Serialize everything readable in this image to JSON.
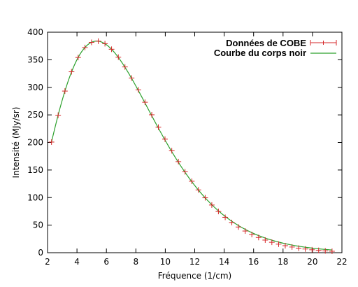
{
  "chart_data": {
    "type": "scatter",
    "title": "",
    "xlabel": "Fréquence (1/cm)",
    "ylabel": "Intensité (MJy/sr)",
    "xlim": [
      2,
      22
    ],
    "ylim": [
      0,
      400
    ],
    "xticks": [
      "2",
      "4",
      "6",
      "8",
      "10",
      "12",
      "14",
      "16",
      "18",
      "20",
      "22"
    ],
    "yticks": [
      "0",
      "50",
      "100",
      "150",
      "200",
      "250",
      "300",
      "350",
      "400"
    ],
    "grid": false,
    "legend_position": "top-right",
    "series": [
      {
        "name": "Données de COBE",
        "kind": "points-with-errorbars",
        "color": "#d62728",
        "x": [
          2.27,
          2.72,
          3.18,
          3.63,
          4.08,
          4.54,
          4.99,
          5.45,
          5.9,
          6.35,
          6.81,
          7.26,
          7.71,
          8.17,
          8.62,
          9.08,
          9.53,
          9.98,
          10.44,
          10.89,
          11.34,
          11.8,
          12.25,
          12.71,
          13.16,
          13.61,
          14.07,
          14.52,
          14.97,
          15.43,
          15.88,
          16.34,
          16.79,
          17.24,
          17.7,
          18.15,
          18.61,
          19.06,
          19.51,
          19.97,
          20.42,
          20.87,
          21.33
        ],
        "y": [
          200.7,
          249.4,
          293.2,
          328.2,
          354.1,
          372.2,
          381.6,
          383.7,
          379.2,
          369.1,
          354.7,
          337.0,
          316.9,
          295.4,
          272.9,
          250.2,
          227.7,
          206.0,
          185.0,
          165.2,
          146.8,
          129.6,
          113.9,
          99.6,
          86.5,
          74.8,
          64.2,
          54.8,
          46.6,
          39.3,
          33.0,
          27.6,
          22.9,
          18.9,
          15.5,
          12.7,
          10.3,
          8.3,
          6.7,
          5.3,
          4.2,
          3.3,
          2.6
        ]
      },
      {
        "name": "Courbe du corps noir",
        "kind": "line",
        "color": "#2ca02c",
        "formula": "planck T=2.725K"
      }
    ]
  }
}
